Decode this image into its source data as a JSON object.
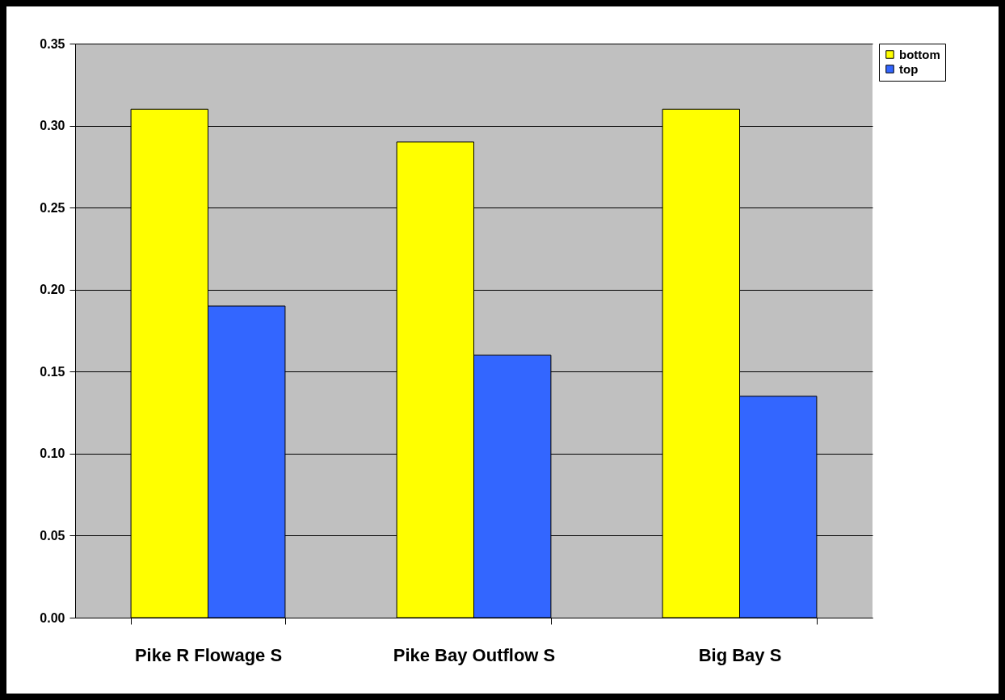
{
  "chart_data": {
    "type": "bar",
    "categories": [
      "Pike R Flowage S",
      "Pike Bay Outflow S",
      "Big Bay S"
    ],
    "series": [
      {
        "name": "bottom",
        "color": "#ffff00",
        "values": [
          0.31,
          0.29,
          0.31
        ]
      },
      {
        "name": "top",
        "color": "#3366ff",
        "values": [
          0.19,
          0.16,
          0.135
        ]
      }
    ],
    "ylim": [
      0,
      0.35
    ],
    "yticks": [
      {
        "value": 0,
        "label": "0.00"
      },
      {
        "value": 0.05,
        "label": "0.05"
      },
      {
        "value": 0.1,
        "label": "0.10"
      },
      {
        "value": 0.15,
        "label": "0.15"
      },
      {
        "value": 0.2,
        "label": "0.20"
      },
      {
        "value": 0.25,
        "label": "0.25"
      },
      {
        "value": 0.3,
        "label": "0.30"
      },
      {
        "value": 0.35,
        "label": "0.35"
      }
    ],
    "grid": "y",
    "legend": "right"
  }
}
